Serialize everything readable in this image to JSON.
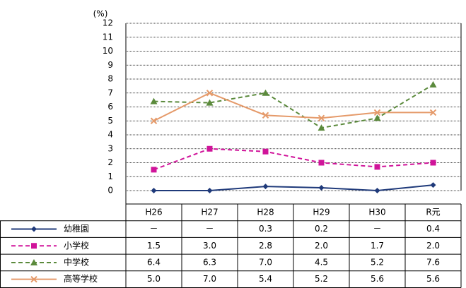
{
  "chart_data": {
    "type": "line",
    "unit_label": "(%)",
    "categories": [
      "H26",
      "H27",
      "H28",
      "H29",
      "H30",
      "R元"
    ],
    "ylim": [
      0,
      12
    ],
    "yticks": [
      0,
      1,
      2,
      3,
      4,
      5,
      6,
      7,
      8,
      9,
      10,
      11,
      12
    ],
    "grid": true,
    "series": [
      {
        "name": "幼稚園",
        "color": "#1f3a7a",
        "dash": "solid",
        "marker": "diamond",
        "values": [
          0,
          0,
          0.3,
          0.2,
          0,
          0.4
        ],
        "value_labels": [
          "－",
          "－",
          "0.3",
          "0.2",
          "－",
          "0.4"
        ]
      },
      {
        "name": "小学校",
        "color": "#d0149a",
        "dash": "dashed",
        "marker": "square",
        "values": [
          1.5,
          3.0,
          2.8,
          2.0,
          1.7,
          2.0
        ],
        "value_labels": [
          "1.5",
          "3.0",
          "2.8",
          "2.0",
          "1.7",
          "2.0"
        ]
      },
      {
        "name": "中学校",
        "color": "#5b8a3c",
        "dash": "dashed",
        "marker": "triangle",
        "values": [
          6.4,
          6.3,
          7.0,
          4.5,
          5.2,
          7.6
        ],
        "value_labels": [
          "6.4",
          "6.3",
          "7.0",
          "4.5",
          "5.2",
          "7.6"
        ]
      },
      {
        "name": "高等学校",
        "color": "#e59a6a",
        "dash": "solid",
        "marker": "x",
        "values": [
          5.0,
          7.0,
          5.4,
          5.2,
          5.6,
          5.6
        ],
        "value_labels": [
          "5.0",
          "7.0",
          "5.4",
          "5.2",
          "5.6",
          "5.6"
        ]
      }
    ]
  }
}
